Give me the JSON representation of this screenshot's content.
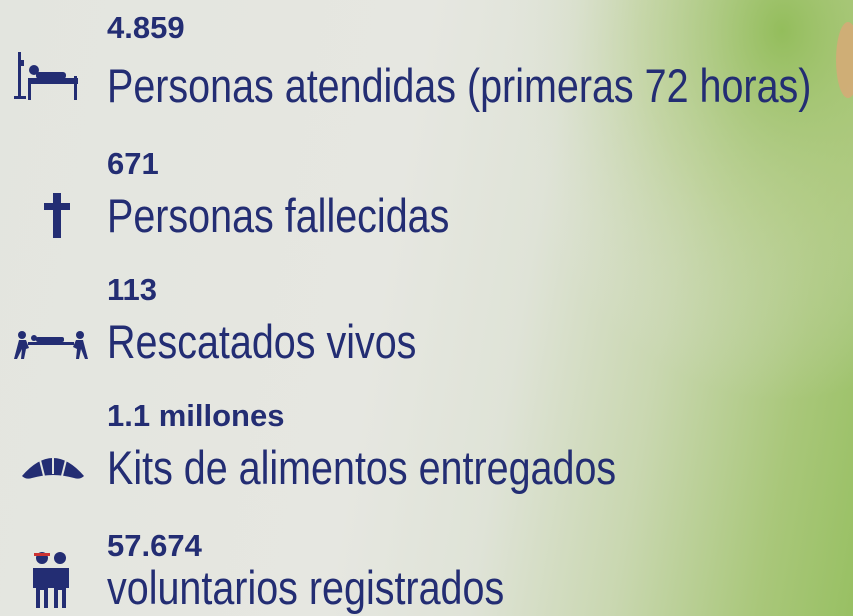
{
  "items": [
    {
      "value": "4.859",
      "label": "Personas atendidas (primeras 72 horas)"
    },
    {
      "value": "671",
      "label": "Personas fallecidas"
    },
    {
      "value": "113",
      "label": "Rescatados vivos"
    },
    {
      "value": "1.1 millones",
      "label": "Kits de alimentos entregados"
    },
    {
      "value": "57.674",
      "label": "voluntarios registrados"
    }
  ]
}
